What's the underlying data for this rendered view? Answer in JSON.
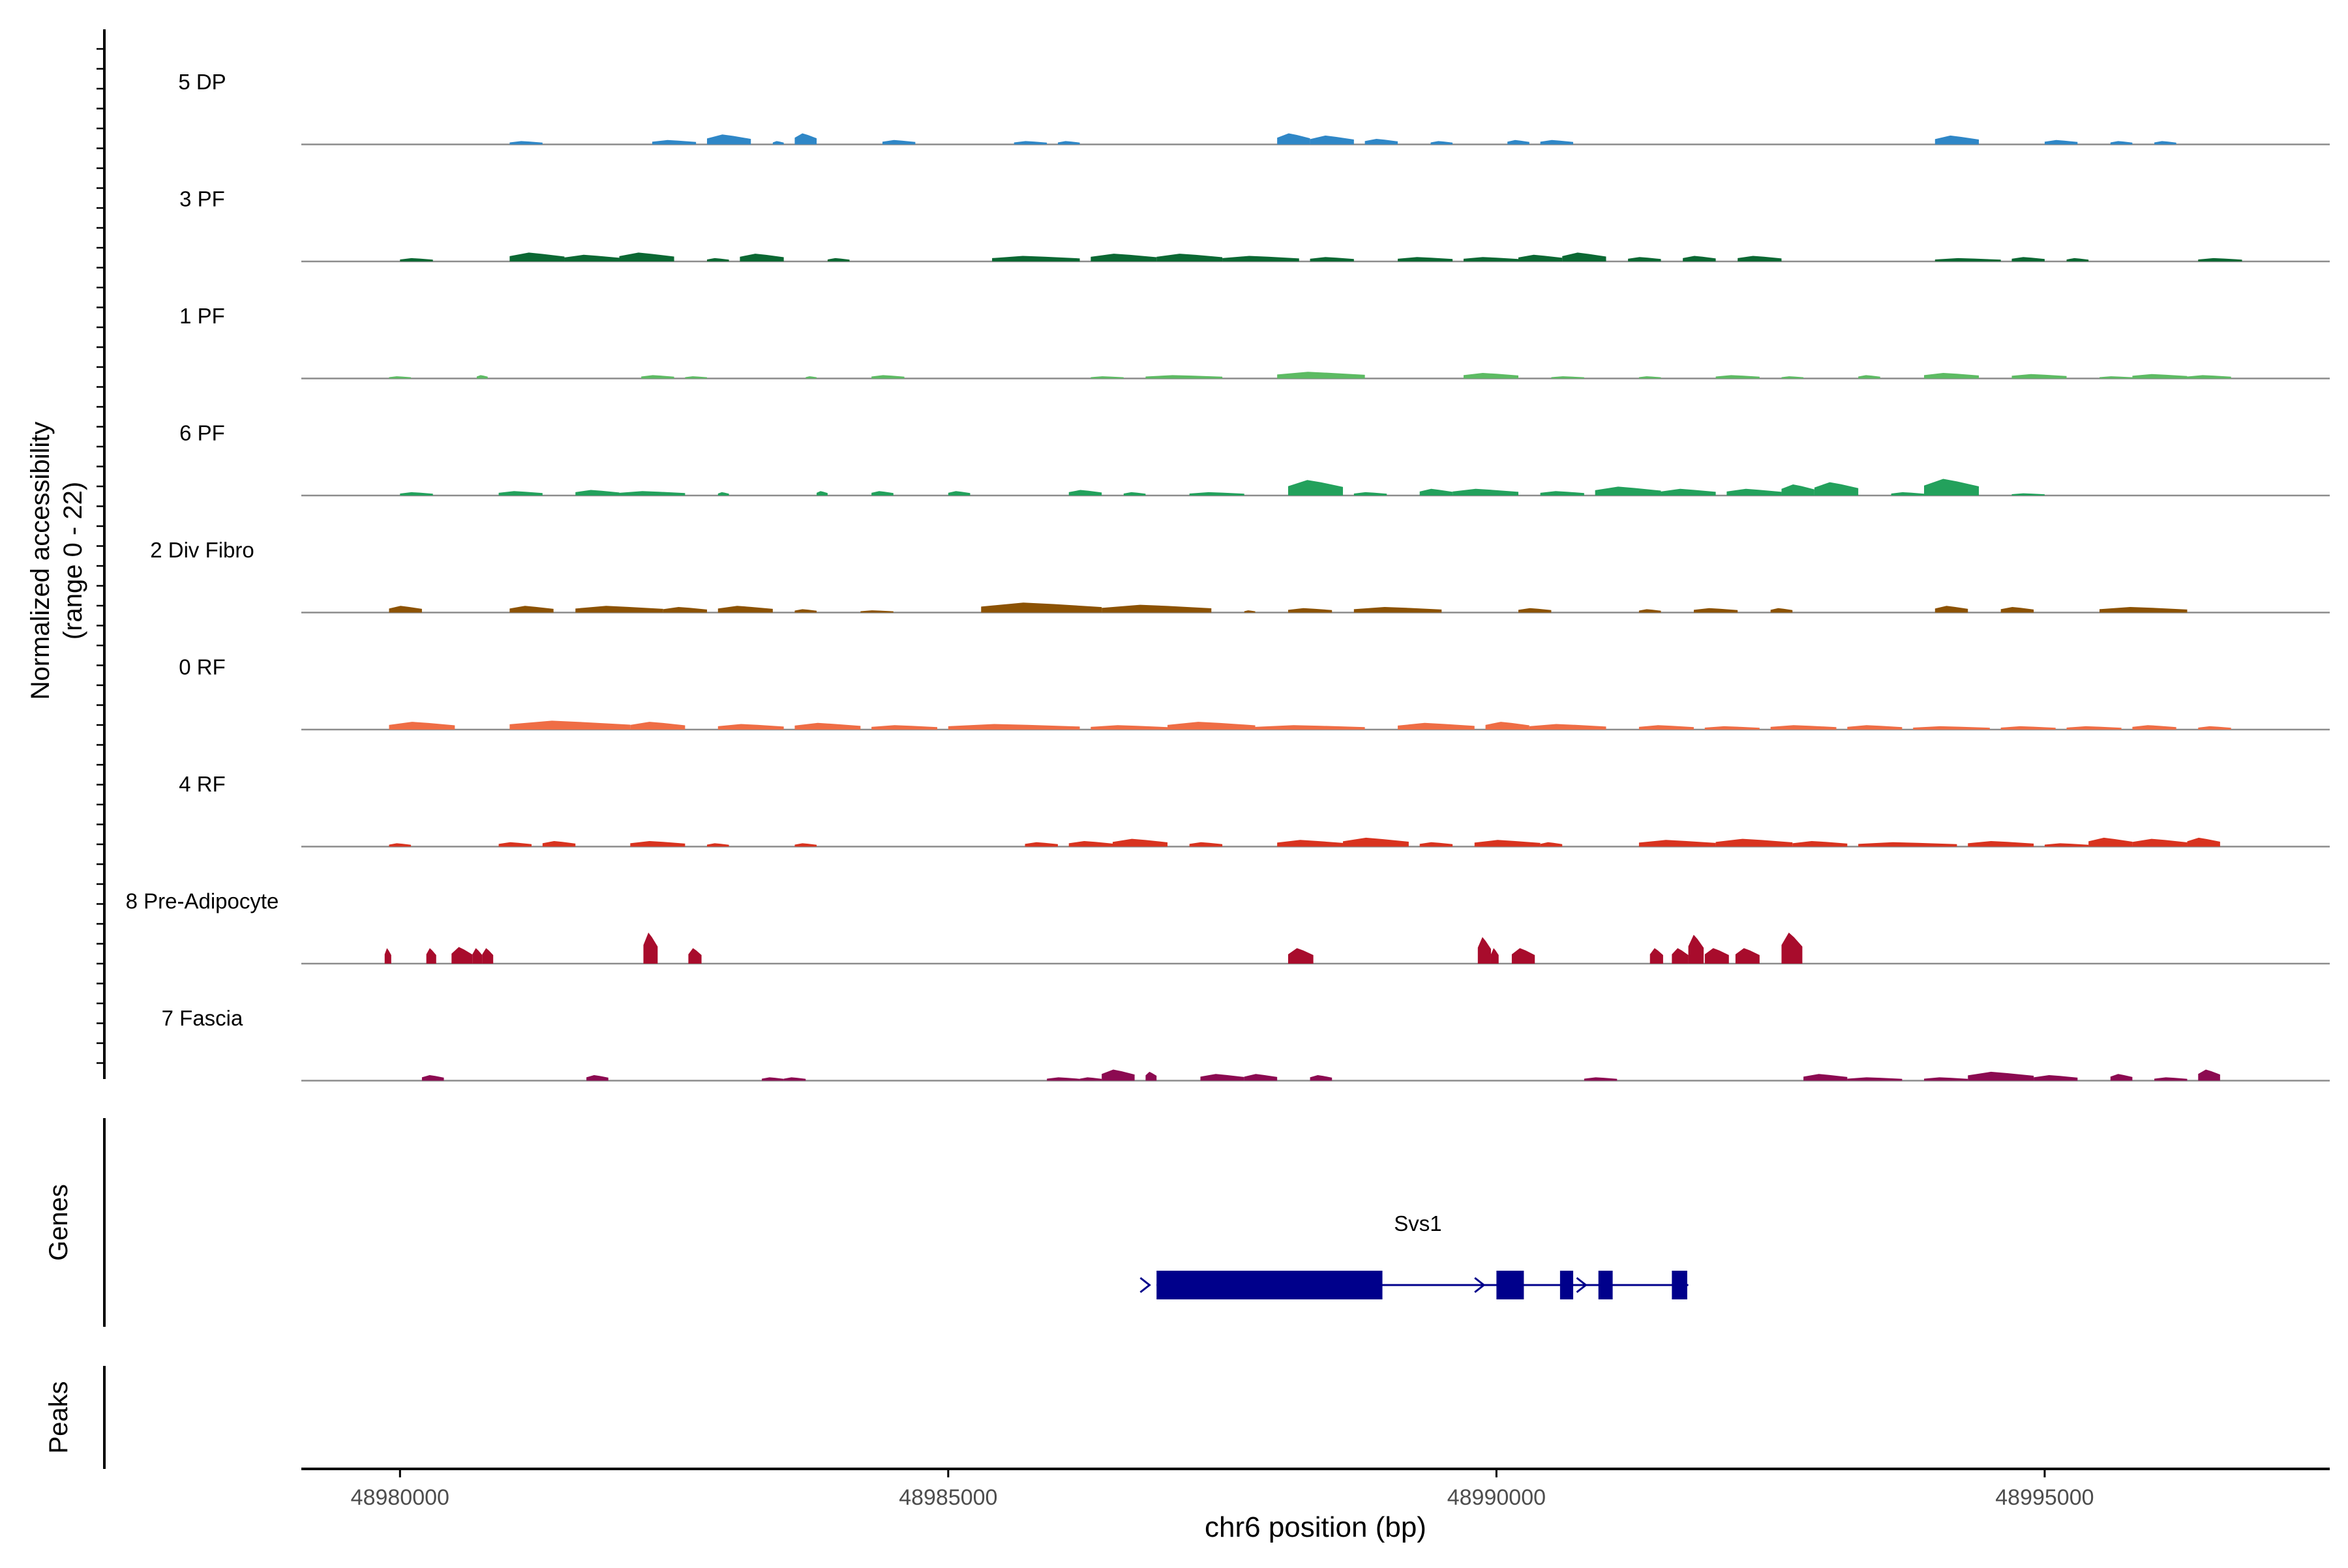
{
  "chart_data": {
    "type": "area",
    "title": "",
    "xlabel": "chr6 position (bp)",
    "xlim": [
      48979100,
      48997600
    ],
    "x_ticks": [
      48980000,
      48985000,
      48990000,
      48995000
    ],
    "x_tick_labels": [
      "48980000",
      "48985000",
      "48990000",
      "48995000"
    ],
    "coverage_ylabel_line1": "Normalized accessibility",
    "coverage_ylabel_line2": "(range 0 - 22)",
    "ylim": [
      0,
      22
    ],
    "genes_label": "Genes",
    "peaks_label": "Peaks",
    "series": [
      {
        "name": "5 DP",
        "color": "#2f87c7",
        "peaks": [
          [
            48981000,
            48981300,
            1.5
          ],
          [
            48982300,
            48982700,
            2
          ],
          [
            48982800,
            48983200,
            4.5
          ],
          [
            48983400,
            48983500,
            1.5
          ],
          [
            48983600,
            48983800,
            5
          ],
          [
            48984400,
            48984700,
            2
          ],
          [
            48985600,
            48985900,
            1.5
          ],
          [
            48986000,
            48986200,
            1.5
          ],
          [
            48988000,
            48988300,
            5
          ],
          [
            48988300,
            48988700,
            4
          ],
          [
            48988800,
            48989100,
            2.5
          ],
          [
            48989400,
            48989600,
            1.5
          ],
          [
            48990100,
            48990300,
            2
          ],
          [
            48990400,
            48990700,
            2
          ],
          [
            48994000,
            48994400,
            4
          ],
          [
            48995000,
            48995300,
            2
          ],
          [
            48995600,
            48995800,
            1.5
          ],
          [
            48996000,
            48996200,
            1.5
          ]
        ]
      },
      {
        "name": "3 PF",
        "color": "#0b6833",
        "peaks": [
          [
            48980000,
            48980300,
            1.5
          ],
          [
            48981000,
            48981500,
            4
          ],
          [
            48981500,
            48982000,
            3
          ],
          [
            48982000,
            48982500,
            4
          ],
          [
            48982800,
            48983000,
            1.5
          ],
          [
            48983100,
            48983500,
            3.5
          ],
          [
            48983900,
            48984100,
            1.5
          ],
          [
            48985400,
            48986200,
            2.5
          ],
          [
            48986300,
            48986900,
            3.5
          ],
          [
            48986900,
            48987500,
            3.5
          ],
          [
            48987500,
            48988200,
            2.5
          ],
          [
            48988300,
            48988700,
            2
          ],
          [
            48989100,
            48989600,
            2
          ],
          [
            48989700,
            48990200,
            2
          ],
          [
            48990200,
            48990600,
            3
          ],
          [
            48990600,
            48991000,
            4
          ],
          [
            48991200,
            48991500,
            2
          ],
          [
            48991700,
            48992000,
            2.5
          ],
          [
            48992200,
            48992600,
            2.5
          ],
          [
            48994000,
            48994600,
            1.5
          ],
          [
            48994700,
            48995000,
            2
          ],
          [
            48995200,
            48995400,
            1.5
          ],
          [
            48996400,
            48996800,
            1.5
          ]
        ]
      },
      {
        "name": "1 PF",
        "color": "#5dbb63",
        "peaks": [
          [
            48979900,
            48980100,
            1
          ],
          [
            48980700,
            48980800,
            1.5
          ],
          [
            48982200,
            48982500,
            1.5
          ],
          [
            48982600,
            48982800,
            1
          ],
          [
            48983700,
            48983800,
            1
          ],
          [
            48984300,
            48984600,
            1.5
          ],
          [
            48986300,
            48986600,
            1
          ],
          [
            48986800,
            48987500,
            1.5
          ],
          [
            48988000,
            48988800,
            3
          ],
          [
            48989700,
            48990200,
            2.5
          ],
          [
            48990500,
            48990800,
            1
          ],
          [
            48991300,
            48991500,
            1
          ],
          [
            48992000,
            48992400,
            1.5
          ],
          [
            48992600,
            48992800,
            1
          ],
          [
            48993300,
            48993500,
            1.5
          ],
          [
            48993900,
            48994400,
            2.5
          ],
          [
            48994700,
            48995200,
            2
          ],
          [
            48995500,
            48995800,
            1
          ],
          [
            48995800,
            48996300,
            2
          ],
          [
            48996300,
            48996700,
            1.5
          ]
        ]
      },
      {
        "name": "6 PF",
        "color": "#23a15c",
        "peaks": [
          [
            48980000,
            48980300,
            1.5
          ],
          [
            48980900,
            48981300,
            2
          ],
          [
            48981600,
            48982000,
            2.5
          ],
          [
            48982000,
            48982600,
            2
          ],
          [
            48982900,
            48983000,
            1.5
          ],
          [
            48983800,
            48983900,
            2
          ],
          [
            48984300,
            48984500,
            2
          ],
          [
            48985000,
            48985200,
            2
          ],
          [
            48986100,
            48986400,
            2.5
          ],
          [
            48986600,
            48986800,
            1.5
          ],
          [
            48987200,
            48987700,
            1.5
          ],
          [
            48988100,
            48988600,
            7
          ],
          [
            48988700,
            48989000,
            1.5
          ],
          [
            48989300,
            48989600,
            3
          ],
          [
            48989600,
            48990200,
            3
          ],
          [
            48990400,
            48990800,
            2
          ],
          [
            48990900,
            48991500,
            4
          ],
          [
            48991500,
            48992000,
            3
          ],
          [
            48992100,
            48992600,
            3
          ],
          [
            48992600,
            48992900,
            5
          ],
          [
            48992900,
            48993300,
            6
          ],
          [
            48993600,
            48993900,
            1.5
          ],
          [
            48993900,
            48994400,
            7.5
          ],
          [
            48994700,
            48995000,
            1
          ]
        ]
      },
      {
        "name": "2 Div Fibro",
        "color": "#8c5203",
        "peaks": [
          [
            48979900,
            48980200,
            3
          ],
          [
            48981000,
            48981400,
            3
          ],
          [
            48981600,
            48982400,
            3
          ],
          [
            48982400,
            48982800,
            2.5
          ],
          [
            48982900,
            48983400,
            3
          ],
          [
            48983600,
            48983800,
            1.5
          ],
          [
            48984200,
            48984500,
            1
          ],
          [
            48985300,
            48986400,
            4.5
          ],
          [
            48986400,
            48987400,
            3.5
          ],
          [
            48987700,
            48987800,
            1
          ],
          [
            48988100,
            48988500,
            2
          ],
          [
            48988700,
            48989500,
            2.5
          ],
          [
            48990200,
            48990500,
            2
          ],
          [
            48991300,
            48991500,
            1.5
          ],
          [
            48991800,
            48992200,
            2
          ],
          [
            48992500,
            48992700,
            2
          ],
          [
            48994000,
            48994300,
            3
          ],
          [
            48994600,
            48994900,
            2.5
          ],
          [
            48995500,
            48996300,
            2.5
          ]
        ]
      },
      {
        "name": "0 RF",
        "color": "#ef6d45",
        "peaks": [
          [
            48979900,
            48980500,
            3.5
          ],
          [
            48981000,
            48982100,
            4
          ],
          [
            48982100,
            48982600,
            3.5
          ],
          [
            48982900,
            48983500,
            2.5
          ],
          [
            48983600,
            48984200,
            3
          ],
          [
            48984300,
            48984900,
            2
          ],
          [
            48985000,
            48986200,
            2.5
          ],
          [
            48986300,
            48987000,
            2
          ],
          [
            48987000,
            48987800,
            3.5
          ],
          [
            48987800,
            48988800,
            2
          ],
          [
            48989100,
            48989800,
            3
          ],
          [
            48989900,
            48990300,
            3.5
          ],
          [
            48990300,
            48991000,
            2.5
          ],
          [
            48991300,
            48991800,
            2
          ],
          [
            48991900,
            48992400,
            1.5
          ],
          [
            48992500,
            48993100,
            2
          ],
          [
            48993200,
            48993700,
            2
          ],
          [
            48993800,
            48994500,
            1.5
          ],
          [
            48994600,
            48995100,
            1.5
          ],
          [
            48995200,
            48995700,
            1.5
          ],
          [
            48995800,
            48996200,
            2
          ],
          [
            48996400,
            48996700,
            1.5
          ]
        ]
      },
      {
        "name": "4 RF",
        "color": "#d8331f",
        "peaks": [
          [
            48979900,
            48980100,
            1.5
          ],
          [
            48980900,
            48981200,
            2
          ],
          [
            48981300,
            48981600,
            2.5
          ],
          [
            48982100,
            48982600,
            2.5
          ],
          [
            48982800,
            48983000,
            1.5
          ],
          [
            48983600,
            48983800,
            1.5
          ],
          [
            48985700,
            48986000,
            2
          ],
          [
            48986100,
            48986500,
            2.5
          ],
          [
            48986500,
            48987000,
            3.5
          ],
          [
            48987200,
            48987500,
            2
          ],
          [
            48988000,
            48988600,
            3
          ],
          [
            48988600,
            48989200,
            4
          ],
          [
            48989300,
            48989600,
            2
          ],
          [
            48989800,
            48990400,
            3
          ],
          [
            48990400,
            48990600,
            2
          ],
          [
            48991300,
            48992000,
            3
          ],
          [
            48992000,
            48992700,
            3.5
          ],
          [
            48992700,
            48993200,
            2.5
          ],
          [
            48993300,
            48994200,
            2
          ],
          [
            48994300,
            48994900,
            2.5
          ],
          [
            48995000,
            48995400,
            1.5
          ],
          [
            48995400,
            48995800,
            4
          ],
          [
            48995800,
            48996300,
            3.5
          ],
          [
            48996300,
            48996600,
            4
          ]
        ]
      },
      {
        "name": "8 Pre-Adipocyte",
        "color": "#a80c2c",
        "peaks": [
          [
            48979860,
            48979920,
            7
          ],
          [
            48980240,
            48980330,
            7
          ],
          [
            48980470,
            48980660,
            7.5
          ],
          [
            48980660,
            48980750,
            7
          ],
          [
            48980750,
            48980850,
            7
          ],
          [
            48982220,
            48982350,
            14
          ],
          [
            48982630,
            48982750,
            7
          ],
          [
            48988100,
            48988330,
            7
          ],
          [
            48989830,
            48989950,
            12
          ],
          [
            48989950,
            48990020,
            7
          ],
          [
            48990140,
            48990350,
            7
          ],
          [
            48991400,
            48991520,
            7
          ],
          [
            48991600,
            48991750,
            7
          ],
          [
            48991750,
            48991890,
            13
          ],
          [
            48991900,
            48992120,
            7
          ],
          [
            48992180,
            48992400,
            7
          ],
          [
            48992600,
            48992790,
            14
          ]
        ]
      },
      {
        "name": "7 Fascia",
        "color": "#8c0a51",
        "peaks": [
          [
            48980200,
            48980400,
            2.5
          ],
          [
            48981700,
            48981900,
            2.5
          ],
          [
            48983300,
            48983500,
            1.5
          ],
          [
            48983500,
            48983700,
            1.5
          ],
          [
            48985900,
            48986200,
            1.5
          ],
          [
            48986200,
            48986400,
            1.5
          ],
          [
            48986400,
            48986700,
            5
          ],
          [
            48986800,
            48986900,
            4
          ],
          [
            48987300,
            48987700,
            3
          ],
          [
            48987700,
            48988000,
            3
          ],
          [
            48988300,
            48988500,
            2.5
          ],
          [
            48990800,
            48991100,
            1.5
          ],
          [
            48992800,
            48993200,
            3
          ],
          [
            48993200,
            48993700,
            1.5
          ],
          [
            48993900,
            48994300,
            1.5
          ],
          [
            48994300,
            48994900,
            4
          ],
          [
            48994900,
            48995300,
            2.5
          ],
          [
            48995600,
            48995800,
            3
          ],
          [
            48996000,
            48996300,
            1.5
          ],
          [
            48996400,
            48996600,
            5
          ]
        ]
      }
    ],
    "gene": {
      "name": "Svs1",
      "color": "#00008b",
      "strand": "+",
      "start": 48986900,
      "end": 48991750,
      "exons": [
        [
          48986900,
          48988960
        ],
        [
          48990000,
          48990250
        ],
        [
          48990580,
          48990700
        ],
        [
          48990930,
          48991060
        ],
        [
          48991600,
          48991740
        ]
      ],
      "arrows": [
        48986800,
        48989850,
        48990780
      ]
    },
    "peaks_track": []
  }
}
